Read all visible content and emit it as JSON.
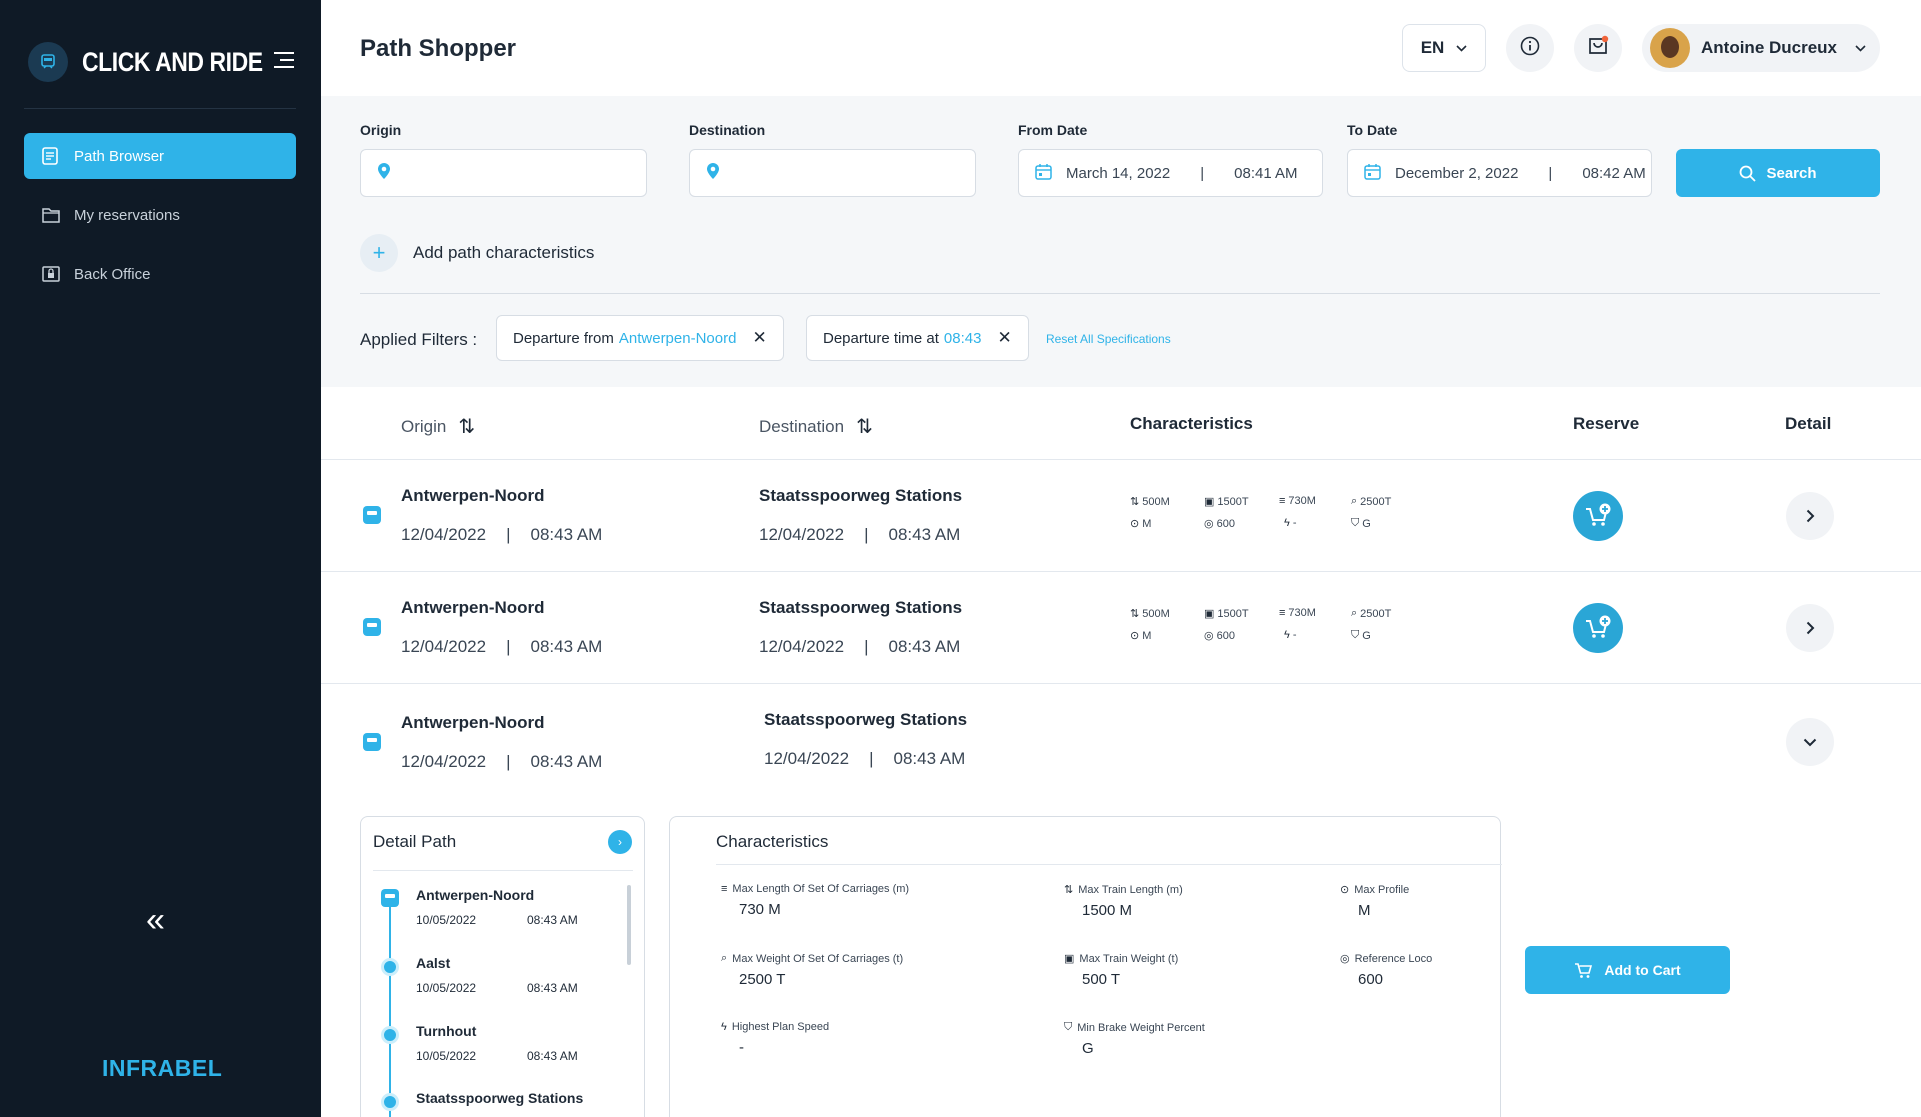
{
  "sidebar": {
    "brand": "CLICK AND RIDE",
    "items": [
      {
        "label": "Path Browser",
        "icon": "document-icon",
        "active": true
      },
      {
        "label": "My reservations",
        "icon": "folder-icon",
        "active": false
      },
      {
        "label": "Back Office",
        "icon": "lock-icon",
        "active": false
      }
    ],
    "collapse_glyph": "«",
    "footer_logo": "INFRABEL"
  },
  "header": {
    "title": "Path Shopper",
    "language": "EN",
    "user_name": "Antoine Ducreux"
  },
  "search": {
    "origin_label": "Origin",
    "destination_label": "Destination",
    "from_date_label": "From Date",
    "from_date": "March 14, 2022",
    "from_time": "08:41 AM",
    "to_date_label": "To Date",
    "to_date": "December 2, 2022",
    "to_time": "08:42 AM",
    "search_label": "Search",
    "add_characteristics": "Add path characteristics"
  },
  "filters": {
    "label": "Applied Filters :",
    "chips": [
      {
        "prefix": "Departure from",
        "value": "Antwerpen-Noord"
      },
      {
        "prefix": "Departure time at",
        "value": "08:43"
      }
    ],
    "reset_label": "Reset All Specifications"
  },
  "table": {
    "headers": {
      "origin": "Origin",
      "destination": "Destination",
      "characteristics": "Characteristics",
      "reserve": "Reserve",
      "detail": "Detail"
    },
    "rows": [
      {
        "origin": "Antwerpen-Noord",
        "origin_date": "12/04/2022",
        "origin_time": "08:43 AM",
        "destination": "Staatsspoorweg Stations",
        "dest_date": "12/04/2022",
        "dest_time": "08:43 AM",
        "chars": [
          "500M",
          "1500T",
          "730M",
          "2500T",
          "M",
          "600",
          "-",
          "G"
        ]
      },
      {
        "origin": "Antwerpen-Noord",
        "origin_date": "12/04/2022",
        "origin_time": "08:43 AM",
        "destination": "Staatsspoorweg Stations",
        "dest_date": "12/04/2022",
        "dest_time": "08:43 AM",
        "chars": [
          "500M",
          "1500T",
          "730M",
          "2500T",
          "M",
          "600",
          "-",
          "G"
        ]
      },
      {
        "origin": "Antwerpen-Noord",
        "origin_date": "12/04/2022",
        "origin_time": "08:43 AM",
        "destination": "Staatsspoorweg Stations",
        "dest_date": "12/04/2022",
        "dest_time": "08:43 AM"
      }
    ]
  },
  "detail_path": {
    "title": "Detail Path",
    "stops": [
      {
        "name": "Antwerpen-Noord",
        "date": "10/05/2022",
        "time": "08:43 AM"
      },
      {
        "name": "Aalst",
        "date": "10/05/2022",
        "time": "08:43 AM"
      },
      {
        "name": "Turnhout",
        "date": "10/05/2022",
        "time": "08:43 AM"
      },
      {
        "name": "Staatsspoorweg Stations"
      }
    ]
  },
  "characteristics": {
    "title": "Characteristics",
    "items": [
      {
        "label": "Max Length Of Set Of Carriages (m)",
        "value": "730 M"
      },
      {
        "label": "Max Train Length (m)",
        "value": "1500 M"
      },
      {
        "label": "Max Profile",
        "value": "M"
      },
      {
        "label": "Max Weight Of Set Of Carriages (t)",
        "value": "2500 T"
      },
      {
        "label": "Max Train Weight (t)",
        "value": "500 T"
      },
      {
        "label": "Reference Loco",
        "value": "600"
      },
      {
        "label": "Highest Plan Speed",
        "value": "-"
      },
      {
        "label": "Min Brake Weight Percent",
        "value": "G"
      }
    ],
    "add_to_cart_label": "Add to Cart"
  },
  "colors": {
    "accent": "#2fb3e8",
    "sidebar_bg": "#0f1a26",
    "panel_bg": "#f5f7f9"
  }
}
